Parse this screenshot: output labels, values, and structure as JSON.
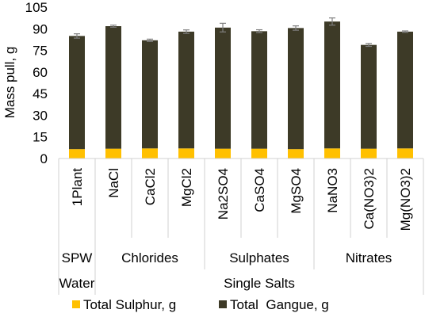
{
  "chart_data": {
    "type": "bar",
    "stacked": true,
    "ylabel": "Mass pull, g",
    "ylim": [
      0,
      105
    ],
    "yticks": [
      0,
      15,
      30,
      45,
      60,
      75,
      90,
      105
    ],
    "grid": false,
    "legend_position": "bottom",
    "categories": [
      "1Plant",
      "NaCl",
      "CaCl2",
      "MgCl2",
      "Na2SO4",
      "CaSO4",
      "MgSO4",
      "NaNO3",
      "Ca(NO3)2",
      "Mg(NO3)2"
    ],
    "series": [
      {
        "name": "Total Sulphur, g",
        "color": "#FFC000",
        "values": [
          6.5,
          6.8,
          7.0,
          7.0,
          6.8,
          6.8,
          6.5,
          7.0,
          6.8,
          7.0
        ]
      },
      {
        "name": "Total  Gangue, g",
        "color": "#3D3A27",
        "values": [
          78.5,
          85.0,
          75.0,
          81.0,
          84.0,
          81.5,
          84.0,
          88.0,
          72.0,
          81.0
        ]
      }
    ],
    "totals": [
      85.0,
      91.8,
      82.0,
      88.0,
      90.8,
      88.3,
      90.5,
      95.0,
      78.8,
      88.0
    ],
    "error": [
      1.5,
      0.7,
      0.8,
      1.2,
      3.0,
      1.0,
      1.5,
      2.5,
      1.0,
      0.5
    ],
    "groups_level1": [
      {
        "label": "SPW",
        "from": 0,
        "to": 0
      },
      {
        "label": "Chlorides",
        "from": 1,
        "to": 3
      },
      {
        "label": "Sulphates",
        "from": 4,
        "to": 6
      },
      {
        "label": "Nitrates",
        "from": 7,
        "to": 9
      }
    ],
    "groups_level2": [
      {
        "label": "Water",
        "from": 0,
        "to": 0
      },
      {
        "label": "Single Salts",
        "from": 1,
        "to": 9
      }
    ]
  }
}
